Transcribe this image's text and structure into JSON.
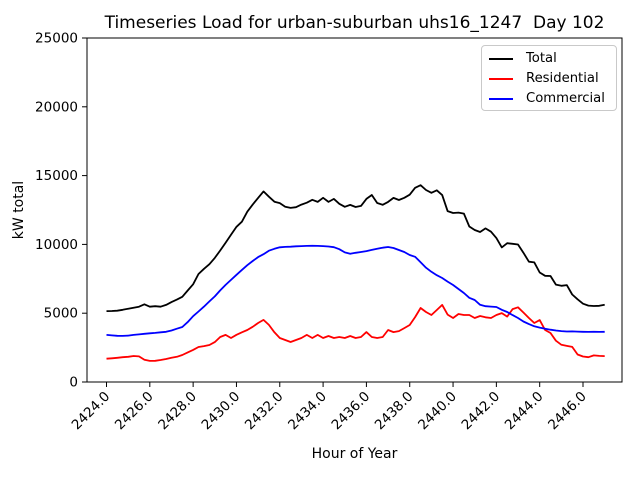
{
  "chart_data": {
    "type": "line",
    "title": "Timeseries Load for urban-suburban uhs16_1247  Day 102",
    "xlabel": "Hour of Year",
    "ylabel": "kW total",
    "xlim": [
      2423.1,
      2447.8
    ],
    "ylim": [
      0,
      25000
    ],
    "grid": false,
    "legend_position": "upper right",
    "yticks": [
      0,
      5000,
      10000,
      15000,
      20000,
      25000
    ],
    "xticks": [
      {
        "value": 2424,
        "label": "2424.0"
      },
      {
        "value": 2426,
        "label": "2426.0"
      },
      {
        "value": 2428,
        "label": "2428.0"
      },
      {
        "value": 2430,
        "label": "2430.0"
      },
      {
        "value": 2432,
        "label": "2432.0"
      },
      {
        "value": 2434,
        "label": "2434.0"
      },
      {
        "value": 2436,
        "label": "2436.0"
      },
      {
        "value": 2438,
        "label": "2438.0"
      },
      {
        "value": 2440,
        "label": "2440.0"
      },
      {
        "value": 2442,
        "label": "2442.0"
      },
      {
        "value": 2444,
        "label": "2444.0"
      },
      {
        "value": 2446,
        "label": "2446.0"
      }
    ],
    "x": [
      2424.0,
      2424.25,
      2424.5,
      2424.75,
      2425.0,
      2425.25,
      2425.5,
      2425.75,
      2426.0,
      2426.25,
      2426.5,
      2426.75,
      2427.0,
      2427.25,
      2427.5,
      2427.75,
      2428.0,
      2428.25,
      2428.5,
      2428.75,
      2429.0,
      2429.25,
      2429.5,
      2429.75,
      2430.0,
      2430.25,
      2430.5,
      2430.75,
      2431.0,
      2431.25,
      2431.5,
      2431.75,
      2432.0,
      2432.25,
      2432.5,
      2432.75,
      2433.0,
      2433.25,
      2433.5,
      2433.75,
      2434.0,
      2434.25,
      2434.5,
      2434.75,
      2435.0,
      2435.25,
      2435.5,
      2435.75,
      2436.0,
      2436.25,
      2436.5,
      2436.75,
      2437.0,
      2437.25,
      2437.5,
      2437.75,
      2438.0,
      2438.25,
      2438.5,
      2438.75,
      2439.0,
      2439.25,
      2439.5,
      2439.75,
      2440.0,
      2440.25,
      2440.5,
      2440.75,
      2441.0,
      2441.25,
      2441.5,
      2441.75,
      2442.0,
      2442.25,
      2442.5,
      2442.75,
      2443.0,
      2443.25,
      2443.5,
      2443.75,
      2444.0,
      2444.25,
      2444.5,
      2444.75,
      2445.0,
      2445.25,
      2445.5,
      2445.75,
      2446.0,
      2446.25,
      2446.5,
      2446.75,
      2447.0
    ],
    "series": [
      {
        "name": "Total",
        "color": "#000000",
        "values": [
          5150,
          5160,
          5180,
          5250,
          5330,
          5400,
          5470,
          5650,
          5470,
          5510,
          5470,
          5600,
          5810,
          5990,
          6190,
          6650,
          7100,
          7850,
          8230,
          8560,
          9020,
          9560,
          10120,
          10700,
          11280,
          11650,
          12380,
          12890,
          13380,
          13850,
          13470,
          13100,
          13000,
          12740,
          12650,
          12700,
          12890,
          13030,
          13240,
          13090,
          13390,
          13090,
          13310,
          12950,
          12730,
          12870,
          12720,
          12800,
          13310,
          13590,
          13010,
          12880,
          13090,
          13380,
          13230,
          13390,
          13610,
          14110,
          14300,
          13950,
          13750,
          13930,
          13580,
          12420,
          12280,
          12310,
          12240,
          11300,
          11050,
          10900,
          11160,
          10920,
          10460,
          9780,
          10090,
          10040,
          9990,
          9400,
          8740,
          8690,
          7960,
          7720,
          7700,
          7080,
          6990,
          7040,
          6360,
          6010,
          5690,
          5550,
          5520,
          5540,
          5610
        ]
      },
      {
        "name": "Residential",
        "color": "#ff0000",
        "values": [
          1690,
          1720,
          1760,
          1800,
          1830,
          1890,
          1860,
          1610,
          1530,
          1540,
          1600,
          1670,
          1760,
          1830,
          1960,
          2150,
          2330,
          2540,
          2610,
          2690,
          2900,
          3270,
          3420,
          3200,
          3430,
          3610,
          3780,
          4010,
          4290,
          4510,
          4150,
          3610,
          3200,
          3050,
          2910,
          3050,
          3200,
          3420,
          3200,
          3420,
          3200,
          3340,
          3200,
          3270,
          3200,
          3340,
          3200,
          3270,
          3630,
          3270,
          3200,
          3270,
          3780,
          3630,
          3700,
          3920,
          4140,
          4720,
          5380,
          5090,
          4870,
          5230,
          5600,
          4900,
          4650,
          4940,
          4870,
          4870,
          4650,
          4800,
          4700,
          4650,
          4870,
          5010,
          4750,
          5300,
          5430,
          5050,
          4650,
          4290,
          4500,
          3780,
          3560,
          3000,
          2700,
          2620,
          2550,
          2000,
          1850,
          1800,
          1930,
          1900,
          1880
        ]
      },
      {
        "name": "Commercial",
        "color": "#0000ff",
        "values": [
          3420,
          3390,
          3360,
          3350,
          3370,
          3420,
          3460,
          3500,
          3540,
          3570,
          3610,
          3650,
          3740,
          3870,
          4000,
          4350,
          4780,
          5120,
          5480,
          5860,
          6220,
          6660,
          7060,
          7420,
          7790,
          8150,
          8490,
          8790,
          9080,
          9290,
          9540,
          9680,
          9790,
          9820,
          9830,
          9860,
          9880,
          9890,
          9900,
          9890,
          9880,
          9850,
          9800,
          9650,
          9420,
          9320,
          9390,
          9450,
          9510,
          9600,
          9690,
          9760,
          9810,
          9740,
          9590,
          9450,
          9230,
          9100,
          8700,
          8310,
          8010,
          7760,
          7560,
          7300,
          7050,
          6760,
          6470,
          6120,
          5960,
          5610,
          5510,
          5480,
          5450,
          5250,
          5090,
          4860,
          4650,
          4400,
          4210,
          4050,
          3950,
          3870,
          3800,
          3740,
          3700,
          3670,
          3680,
          3660,
          3650,
          3640,
          3650,
          3640,
          3650
        ]
      }
    ]
  }
}
